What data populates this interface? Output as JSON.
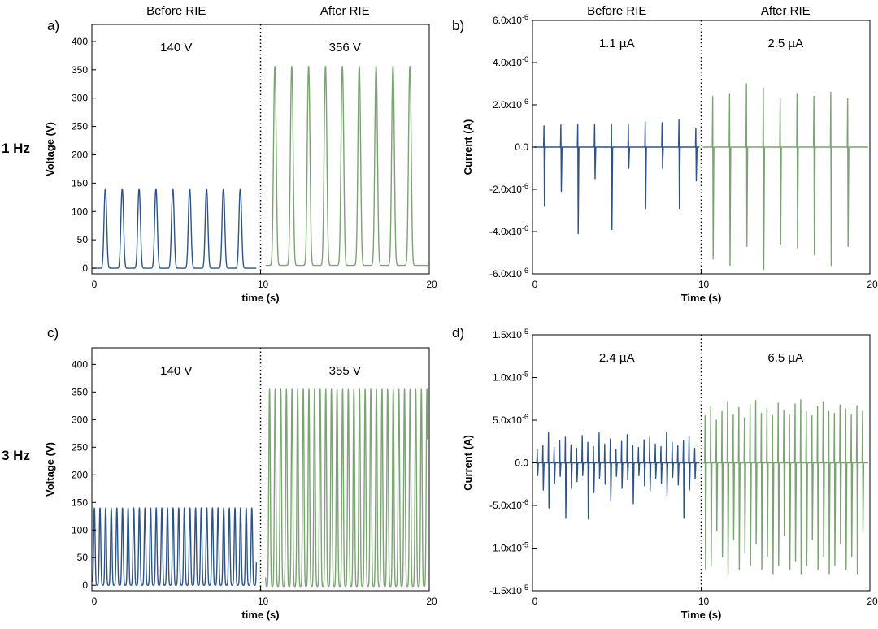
{
  "figure": {
    "row_labels": [
      "1 Hz",
      "3 Hz"
    ]
  },
  "colors": {
    "before": "#2e5487",
    "after": "#7ba374",
    "axis": "#000000"
  },
  "chart_data": [
    {
      "panel": "a)",
      "type": "line",
      "kind": "voltage",
      "headers": [
        "Before RIE",
        "After RIE"
      ],
      "annotations": [
        "140 V",
        "356 V"
      ],
      "xlabel": "time (s)",
      "ylabel": "Voltage (V)",
      "xlim": [
        0,
        20
      ],
      "ylim": [
        -10,
        430
      ],
      "xticks": [
        0,
        10,
        20
      ],
      "xtick_labels": [
        "0",
        "10",
        "20"
      ],
      "yticks": [
        0,
        50,
        100,
        150,
        200,
        250,
        300,
        350,
        400
      ],
      "ytick_labels": [
        "0",
        "50",
        "100",
        "150",
        "200",
        "250",
        "300",
        "350",
        "400"
      ],
      "divider_x": 10,
      "series": [
        {
          "name": "Before RIE",
          "baseline": 0,
          "peak": 140,
          "peaks_x": [
            0.8,
            1.8,
            2.8,
            3.8,
            4.8,
            5.8,
            6.8,
            7.8,
            8.8
          ]
        },
        {
          "name": "After RIE",
          "baseline": 5,
          "peak": 356,
          "peaks_x": [
            10.85,
            11.85,
            12.85,
            13.85,
            14.85,
            15.85,
            16.85,
            17.85,
            18.85
          ]
        }
      ]
    },
    {
      "panel": "b)",
      "type": "line",
      "kind": "current",
      "headers": [
        "Before RIE",
        "After RIE"
      ],
      "annotations": [
        "1.1 µA",
        "2.5 µA"
      ],
      "xlabel": "Time (s)",
      "ylabel": "Current (A)",
      "xlim": [
        0,
        20
      ],
      "ylim": [
        -6e-06,
        6e-06
      ],
      "xticks": [
        0,
        10,
        20
      ],
      "xtick_labels": [
        "0",
        "10",
        "20"
      ],
      "yticks": [
        6e-06,
        4e-06,
        2e-06,
        0,
        -2e-06,
        -4e-06,
        -6e-06
      ],
      "ytick_labels": [
        "6.0x10-6",
        "4.0x10-6",
        "2.0x10-6",
        "0.0",
        "-2.0x10-6",
        "-4.0x10-6",
        "-6.0x10-6"
      ],
      "divider_x": 10,
      "series": [
        {
          "name": "Before RIE",
          "x_range": [
            0.1,
            9.9
          ],
          "spikes": [
            {
              "x": 0.7,
              "high": 1e-06,
              "low": -2.8e-06
            },
            {
              "x": 1.7,
              "high": 1.05e-06,
              "low": -2.1e-06
            },
            {
              "x": 2.7,
              "high": 1.1e-06,
              "low": -4.1e-06
            },
            {
              "x": 3.7,
              "high": 1.1e-06,
              "low": -1.5e-06
            },
            {
              "x": 4.7,
              "high": 1.1e-06,
              "low": -3.9e-06
            },
            {
              "x": 5.7,
              "high": 1.1e-06,
              "low": -1e-06
            },
            {
              "x": 6.7,
              "high": 1.2e-06,
              "low": -2.9e-06
            },
            {
              "x": 7.7,
              "high": 1.15e-06,
              "low": -1e-06
            },
            {
              "x": 8.7,
              "high": 1.3e-06,
              "low": -2.9e-06
            },
            {
              "x": 9.7,
              "high": 9e-07,
              "low": -1.6e-06
            }
          ]
        },
        {
          "name": "After RIE",
          "x_range": [
            10.1,
            19.9
          ],
          "spikes": [
            {
              "x": 10.7,
              "high": 2.4e-06,
              "low": -5.3e-06
            },
            {
              "x": 11.7,
              "high": 2.5e-06,
              "low": -5.6e-06
            },
            {
              "x": 12.7,
              "high": 3e-06,
              "low": -4.7e-06
            },
            {
              "x": 13.7,
              "high": 2.8e-06,
              "low": -5.8e-06
            },
            {
              "x": 14.7,
              "high": 2.3e-06,
              "low": -4.6e-06
            },
            {
              "x": 15.7,
              "high": 2.5e-06,
              "low": -4.8e-06
            },
            {
              "x": 16.7,
              "high": 2.4e-06,
              "low": -5.1e-06
            },
            {
              "x": 17.7,
              "high": 2.6e-06,
              "low": -5.6e-06
            },
            {
              "x": 18.7,
              "high": 2.3e-06,
              "low": -4.7e-06
            }
          ]
        }
      ]
    },
    {
      "panel": "c)",
      "type": "line",
      "kind": "voltage",
      "headers": [],
      "annotations": [
        "140 V",
        "355 V"
      ],
      "xlabel": "time (s)",
      "ylabel": "Voltage (V)",
      "xlim": [
        0,
        20
      ],
      "ylim": [
        -10,
        430
      ],
      "xticks": [
        0,
        10,
        20
      ],
      "xtick_labels": [
        "0",
        "10",
        "20"
      ],
      "yticks": [
        0,
        50,
        100,
        150,
        200,
        250,
        300,
        350,
        400
      ],
      "ytick_labels": [
        "0",
        "50",
        "100",
        "150",
        "200",
        "250",
        "300",
        "350",
        "400"
      ],
      "divider_x": 10,
      "series": [
        {
          "name": "Before RIE",
          "baseline": 0,
          "peak": 140,
          "first_peak_x": 0.15,
          "period": 0.3333,
          "count": 30
        },
        {
          "name": "After RIE",
          "baseline": -2,
          "peak": 355,
          "first_peak_x": 10.2,
          "period": 0.3333,
          "count": 30
        }
      ]
    },
    {
      "panel": "d)",
      "type": "line",
      "kind": "current",
      "headers": [],
      "annotations": [
        "2.4 µA",
        "6.5 µA"
      ],
      "xlabel": "Time (s)",
      "ylabel": "Current (A)",
      "xlim": [
        0,
        20
      ],
      "ylim": [
        -1.5e-05,
        1.5e-05
      ],
      "xticks": [
        0,
        10,
        20
      ],
      "xtick_labels": [
        "0",
        "10",
        "20"
      ],
      "yticks": [
        1.5e-05,
        1e-05,
        5e-06,
        0,
        -5e-06,
        -1e-05,
        -1.5e-05
      ],
      "ytick_labels": [
        "1.5x10-5",
        "1.0x10-5",
        "5.0x10-6",
        "0.0",
        "-5.0x10-6",
        "-1.0x10-5",
        "-1.5x10-5"
      ],
      "divider_x": 10,
      "series": [
        {
          "name": "Before RIE",
          "x_range": [
            0.2,
            9.9
          ],
          "first_spike_x": 0.3,
          "period": 0.3333,
          "count": 29,
          "highs": [
            1.5e-06,
            2e-06,
            3.5e-06,
            1.8e-06,
            2.6e-06,
            3e-06,
            2.1e-06,
            1.7e-06,
            3.2e-06,
            2.4e-06,
            1.9e-06,
            3.5e-06,
            2.2e-06,
            2.8e-06,
            1.6e-06,
            2.5e-06,
            3.3e-06,
            2e-06,
            1.8e-06,
            2.7e-06,
            3e-06,
            2.2e-06,
            1.9e-06,
            3.6e-06,
            2.4e-06,
            2e-06,
            2.6e-06,
            3.1e-06,
            1.7e-06
          ],
          "lows": [
            -1.5e-06,
            -3.2e-06,
            -5.3e-06,
            -2.4e-06,
            -1.6e-06,
            -6.5e-06,
            -3e-06,
            -2.2e-06,
            -1.5e-06,
            -6.6e-06,
            -3.5e-06,
            -1.8e-06,
            -2.5e-06,
            -4.5e-06,
            -1.6e-06,
            -3e-06,
            -2e-06,
            -4.8e-06,
            -1.5e-06,
            -2.7e-06,
            -3.3e-06,
            -1.8e-06,
            -2.4e-06,
            -3.8e-06,
            -1.7e-06,
            -2.6e-06,
            -6.5e-06,
            -3.2e-06,
            -1.9e-06
          ]
        },
        {
          "name": "After RIE",
          "x_range": [
            10.1,
            19.9
          ],
          "first_spike_x": 10.25,
          "period": 0.3333,
          "count": 29,
          "highs": [
            5.5e-06,
            6.6e-06,
            5e-06,
            6e-06,
            7.1e-06,
            5.6e-06,
            6.5e-06,
            5.3e-06,
            6.8e-06,
            7.3e-06,
            5.8e-06,
            6.4e-06,
            5.5e-06,
            7e-06,
            6.2e-06,
            5.6e-06,
            6.9e-06,
            7.4e-06,
            6e-06,
            5.5e-06,
            6.6e-06,
            7.1e-06,
            6e-06,
            5.8e-06,
            6.8e-06,
            6.3e-06,
            5.6e-06,
            6.7e-06,
            6e-06
          ],
          "lows": [
            -1.25e-05,
            -1.2e-05,
            -8e-06,
            -1.1e-05,
            -1.3e-05,
            -9e-06,
            -1.25e-05,
            -1.05e-05,
            -1.2e-05,
            -9.5e-06,
            -1.25e-05,
            -1.1e-05,
            -1.3e-05,
            -1.2e-05,
            -8.5e-06,
            -1.25e-05,
            -1.15e-05,
            -1.3e-05,
            -1.2e-05,
            -9e-06,
            -1.25e-05,
            -1.1e-05,
            -1.3e-05,
            -1.2e-05,
            -9.5e-06,
            -1.25e-05,
            -1.1e-05,
            -1.3e-05,
            -8e-06
          ]
        }
      ]
    }
  ]
}
